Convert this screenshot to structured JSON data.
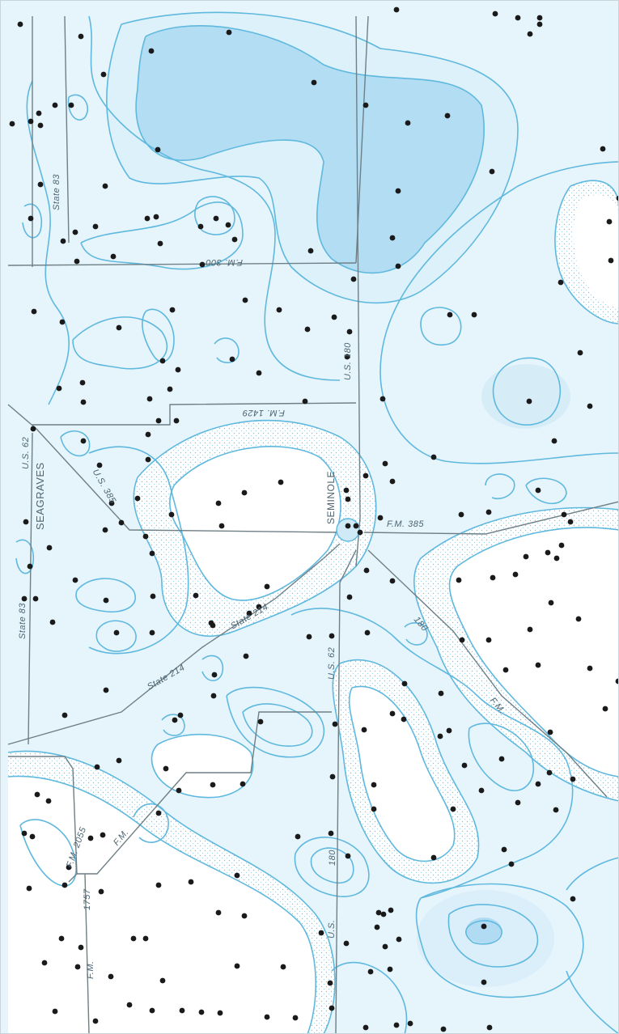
{
  "map": {
    "colors": {
      "background": "#e6f5fc",
      "zone_white": "#ffffff",
      "zone_light": "#d3ecf8",
      "zone_dark": "#8ccbee",
      "contour": "#5fb8de",
      "road": "#6e7f86",
      "well": "#1a1a1a",
      "label": "#4d6470"
    },
    "towns": {
      "seagraves": "SEAGRAVES",
      "seminole": "SEMINOLE"
    },
    "road_labels": {
      "state_83_north": "State 83",
      "fm_300": "F.M. 300",
      "us_180_north": "U.S. 180",
      "fm_1429": "F.M. 1429",
      "us_62_north": "U.S. 62",
      "us_385_west": "U.S. 385",
      "state_83_mid": "State 83",
      "fm_385_east": "F.M. 385",
      "state_214_a": "State 214",
      "state_214_b": "State 214",
      "us_62_south": "U.S. 62",
      "us_180_east": "180",
      "fm_east": "F.M.",
      "fm_2055": "F.M. 2055",
      "fm_1757_a": "1757",
      "fm_1757_b": "F.M.",
      "us_180_south": "180",
      "us_south": "U.S.",
      "fm_west": "F.M."
    },
    "icons": {
      "well_marker": "filled-dot-icon"
    }
  }
}
